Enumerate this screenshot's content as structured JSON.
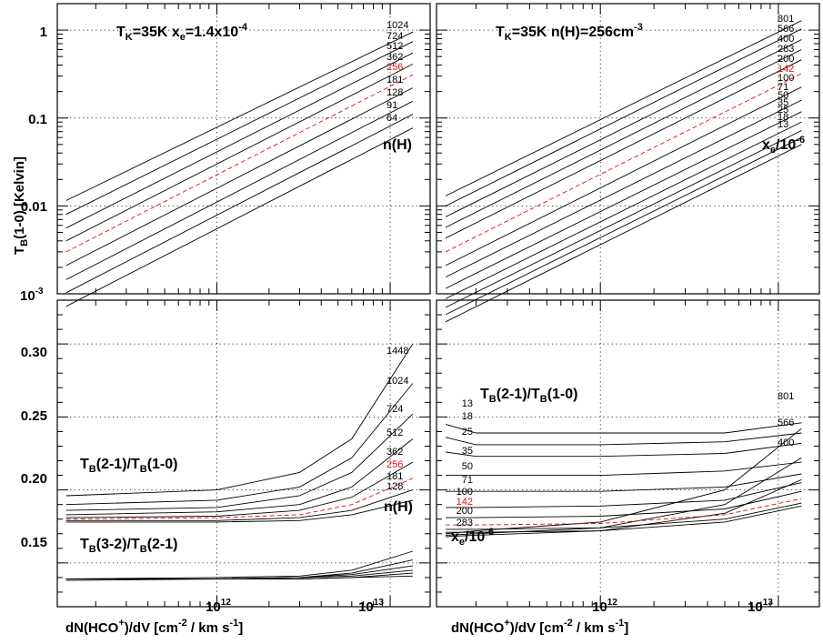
{
  "figure": {
    "xlabel": "dN(HCO⁺)/dV [cm⁻² / km s⁻¹]",
    "ylabel_top": "T_B(1-0) [Kelvin]"
  },
  "chart_data": [
    {
      "id": "tl",
      "type": "line",
      "panel": "top-left",
      "title": "T_K=35K x_e=1.4x10^-4",
      "ylabel": "T_B(1-0) [Kelvin]",
      "xscale": "log",
      "yscale": "log",
      "xlim": [
        120000000000.0,
        17000000000000.0
      ],
      "ylim": [
        0.001,
        2.0
      ],
      "xticks": [
        "10^12",
        "10^13"
      ],
      "yticks": [
        "10^-3",
        "0.01",
        "0.1",
        "1"
      ],
      "x": [
        135000000000.0,
        13500000000000.0
      ],
      "param_label": "n(H)",
      "series": [
        {
          "name": "1024",
          "values": [
            0.0115,
            0.95
          ],
          "color": "#000000"
        },
        {
          "name": "724",
          "values": [
            0.008,
            0.74
          ],
          "color": "#000000"
        },
        {
          "name": "512",
          "values": [
            0.0056,
            0.55
          ],
          "color": "#000000"
        },
        {
          "name": "362",
          "values": [
            0.004,
            0.41
          ],
          "color": "#000000"
        },
        {
          "name": "256",
          "values": [
            0.003,
            0.31
          ],
          "color": "#e01010",
          "dashed": true
        },
        {
          "name": "181",
          "values": [
            0.0021,
            0.22
          ],
          "color": "#000000"
        },
        {
          "name": "128",
          "values": [
            0.00145,
            0.155
          ],
          "color": "#000000"
        },
        {
          "name": "91",
          "values": [
            0.00103,
            0.11
          ],
          "color": "#000000"
        },
        {
          "name": "64",
          "values": [
            0.00072,
            0.077
          ],
          "color": "#000000"
        }
      ]
    },
    {
      "id": "tr",
      "type": "line",
      "panel": "top-right",
      "title": "T_K=35K n(H)=256cm^-3",
      "xscale": "log",
      "yscale": "log",
      "xlim": [
        120000000000.0,
        17000000000000.0
      ],
      "ylim": [
        0.001,
        2.0
      ],
      "xticks": [
        "10^12",
        "10^13"
      ],
      "yticks": [
        "10^-3",
        "0.01",
        "0.1",
        "1"
      ],
      "x": [
        135000000000.0,
        13500000000000.0
      ],
      "param_label": "x_e/10^-6",
      "series": [
        {
          "name": "801",
          "values": [
            0.013,
            1.28
          ],
          "color": "#000000"
        },
        {
          "name": "566",
          "values": [
            0.01,
            1.03
          ],
          "color": "#000000"
        },
        {
          "name": "400",
          "values": [
            0.0075,
            0.78
          ],
          "color": "#000000"
        },
        {
          "name": "283",
          "values": [
            0.0057,
            0.6
          ],
          "color": "#000000"
        },
        {
          "name": "200",
          "values": [
            0.0043,
            0.46
          ],
          "color": "#000000"
        },
        {
          "name": "142",
          "values": [
            0.003,
            0.32
          ],
          "color": "#e01010",
          "dashed": true
        },
        {
          "name": "100",
          "values": [
            0.0021,
            0.225
          ],
          "color": "#000000"
        },
        {
          "name": "71",
          "values": [
            0.00155,
            0.16
          ],
          "color": "#000000"
        },
        {
          "name": "50",
          "values": [
            0.00115,
            0.118
          ],
          "color": "#000000"
        },
        {
          "name": "35",
          "values": [
            0.00088,
            0.09
          ],
          "color": "#000000"
        },
        {
          "name": "25",
          "values": [
            0.0007,
            0.072
          ],
          "color": "#000000"
        },
        {
          "name": "18",
          "values": [
            0.00058,
            0.06
          ],
          "color": "#000000"
        },
        {
          "name": "13",
          "values": [
            0.00048,
            0.05
          ],
          "color": "#000000"
        }
      ]
    },
    {
      "id": "bl",
      "type": "line",
      "panel": "bottom-left",
      "xlabel": "dN(HCO⁺)/dV [cm⁻² / km s⁻¹]",
      "xscale": "log",
      "yscale": "linear",
      "xlim": [
        120000000000.0,
        17000000000000.0
      ],
      "ylim": [
        0.12,
        0.33
      ],
      "xticks": [
        "10^12",
        "10^13"
      ],
      "yticks": [
        "0.15",
        "0.20",
        "0.25",
        "0.30"
      ],
      "x": [
        135000000000.0,
        1000000000000.0,
        3000000000000.0,
        6000000000000.0,
        13500000000000.0
      ],
      "annotations": [
        "T_B(2-1)/T_B(1-0)",
        "T_B(3-2)/T_B(2-1)"
      ],
      "param_label": "n(H)",
      "series": [
        {
          "name": "1448",
          "values": [
            0.196,
            0.2,
            0.212,
            0.235,
            0.3
          ],
          "color": "#000000"
        },
        {
          "name": "1024",
          "values": [
            0.19,
            0.193,
            0.202,
            0.222,
            0.273
          ],
          "color": "#000000"
        },
        {
          "name": "724",
          "values": [
            0.186,
            0.188,
            0.196,
            0.212,
            0.252
          ],
          "color": "#000000"
        },
        {
          "name": "512",
          "values": [
            0.183,
            0.185,
            0.19,
            0.202,
            0.235
          ],
          "color": "#000000"
        },
        {
          "name": "362",
          "values": [
            0.181,
            0.182,
            0.186,
            0.195,
            0.219
          ],
          "color": "#000000"
        },
        {
          "name": "256",
          "values": [
            0.18,
            0.181,
            0.183,
            0.19,
            0.208
          ],
          "color": "#e01010",
          "dashed": true
        },
        {
          "name": "181",
          "values": [
            0.179,
            0.179,
            0.181,
            0.186,
            0.2
          ],
          "color": "#000000"
        },
        {
          "name": "128",
          "values": [
            0.178,
            0.178,
            0.179,
            0.183,
            0.193
          ],
          "color": "#000000"
        },
        {
          "name": "",
          "values": [
            0.139,
            0.14,
            0.141,
            0.145,
            0.158
          ],
          "color": "#000000"
        },
        {
          "name": "",
          "values": [
            0.139,
            0.139,
            0.14,
            0.143,
            0.152
          ],
          "color": "#000000"
        },
        {
          "name": "",
          "values": [
            0.139,
            0.139,
            0.14,
            0.142,
            0.148
          ],
          "color": "#000000"
        },
        {
          "name": "",
          "values": [
            0.139,
            0.139,
            0.14,
            0.141,
            0.145
          ],
          "color": "#000000"
        },
        {
          "name": "",
          "values": [
            0.139,
            0.139,
            0.139,
            0.14,
            0.143
          ],
          "color": "#e01010"
        },
        {
          "name": "",
          "values": [
            0.138,
            0.139,
            0.139,
            0.14,
            0.141
          ],
          "color": "#000000"
        }
      ]
    },
    {
      "id": "br",
      "type": "line",
      "panel": "bottom-right",
      "xlabel": "dN(HCO⁺)/dV [cm⁻² / km s⁻¹]",
      "xscale": "log",
      "yscale": "linear",
      "xlim": [
        120000000000.0,
        17000000000000.0
      ],
      "ylim": [
        0.12,
        0.33
      ],
      "xticks": [
        "10^12",
        "10^13"
      ],
      "yticks": [],
      "x": [
        135000000000.0,
        200000000000.0,
        1000000000000.0,
        5000000000000.0,
        13500000000000.0
      ],
      "annotations": [
        "T_B(2-1)/T_B(1-0)"
      ],
      "param_label": "x_e/10^-6",
      "series": [
        {
          "name": "801",
          "values": [
            0.17,
            0.172,
            0.178,
            0.2,
            0.242
          ],
          "color": "#000000"
        },
        {
          "name": "566",
          "values": [
            0.169,
            0.17,
            0.174,
            0.19,
            0.222
          ],
          "color": "#000000"
        },
        {
          "name": "400",
          "values": [
            0.168,
            0.169,
            0.172,
            0.184,
            0.207
          ],
          "color": "#000000"
        },
        {
          "name": "13",
          "values": [
            0.245,
            0.239,
            0.239,
            0.239,
            0.246
          ],
          "color": "#000000"
        },
        {
          "name": "18",
          "values": [
            0.236,
            0.231,
            0.231,
            0.233,
            0.239
          ],
          "color": "#000000"
        },
        {
          "name": "25",
          "values": [
            0.226,
            0.223,
            0.223,
            0.225,
            0.232
          ],
          "color": "#000000"
        },
        {
          "name": "35",
          "values": [
            0.21,
            0.21,
            0.21,
            0.213,
            0.219
          ],
          "color": "#000000"
        },
        {
          "name": "50",
          "values": [
            0.199,
            0.199,
            0.199,
            0.202,
            0.211
          ],
          "color": "#000000"
        },
        {
          "name": "71",
          "values": [
            0.188,
            0.188,
            0.189,
            0.193,
            0.205
          ],
          "color": "#000000"
        },
        {
          "name": "100",
          "values": [
            0.181,
            0.181,
            0.182,
            0.187,
            0.199
          ],
          "color": "#000000"
        },
        {
          "name": "142",
          "values": [
            0.176,
            0.176,
            0.177,
            0.183,
            0.194
          ],
          "color": "#e01010",
          "dashed": true
        },
        {
          "name": "200",
          "values": [
            0.173,
            0.173,
            0.174,
            0.18,
            0.191
          ],
          "color": "#000000"
        },
        {
          "name": "283",
          "values": [
            0.171,
            0.171,
            0.172,
            0.178,
            0.189
          ],
          "color": "#000000"
        }
      ]
    }
  ]
}
